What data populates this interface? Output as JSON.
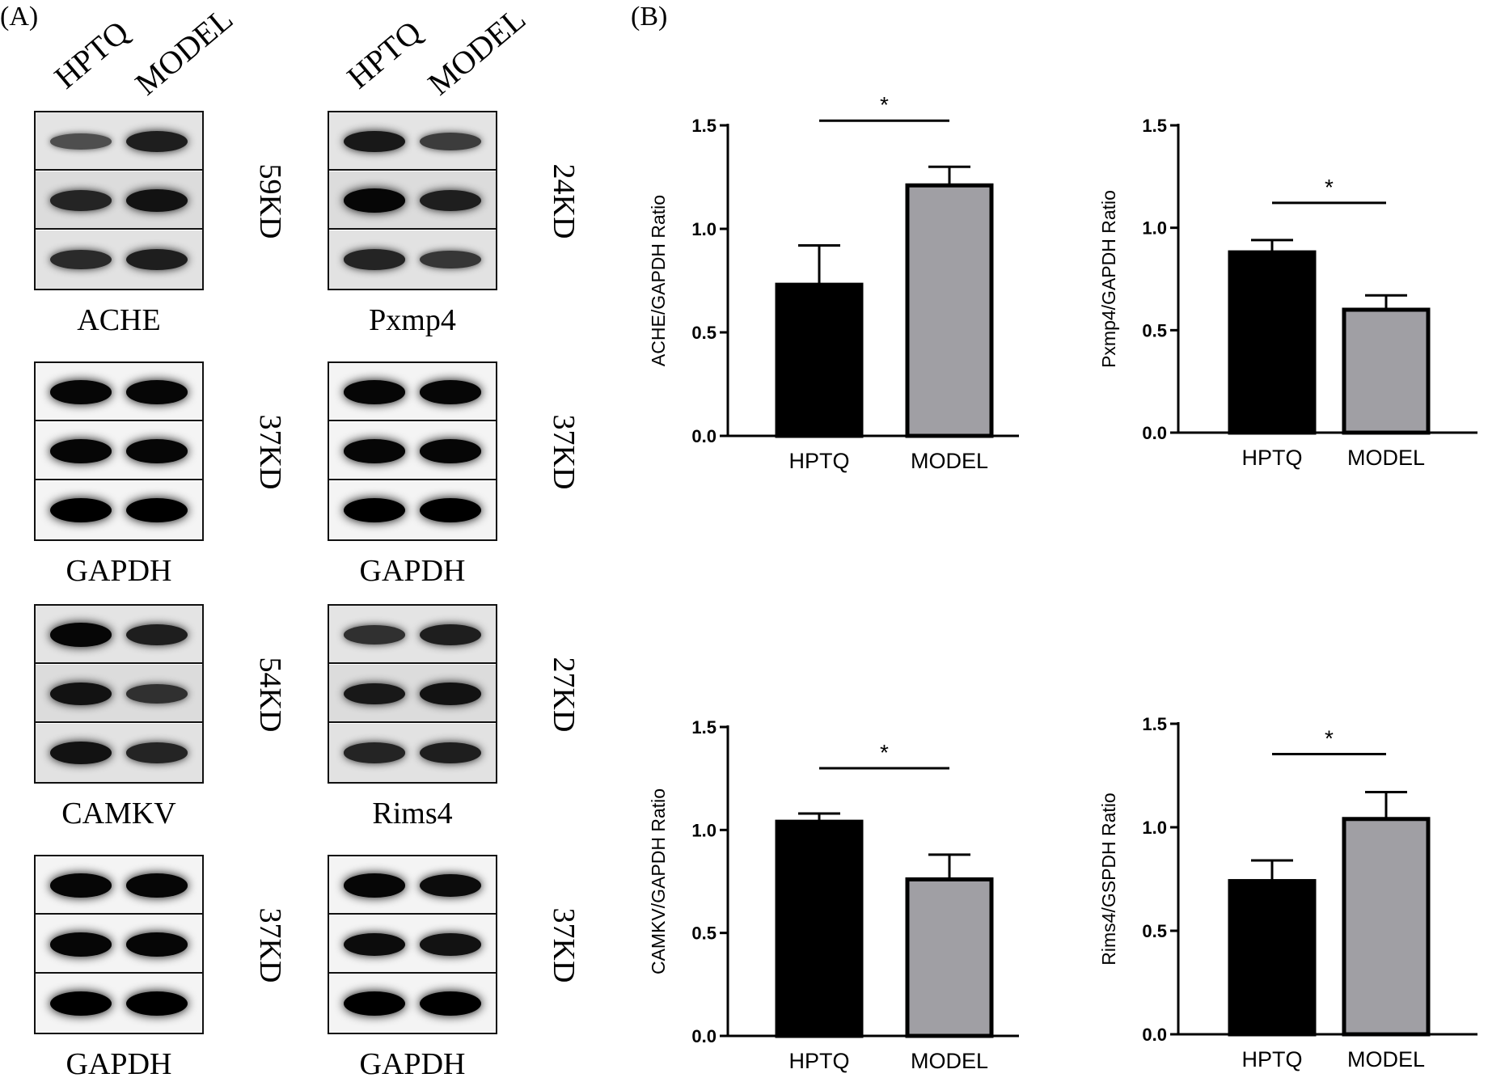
{
  "panels": {
    "a": "(A)",
    "b": "(B)"
  },
  "western_blot": {
    "lane_labels": [
      "HPTQ",
      "MODEL"
    ],
    "blots": [
      {
        "name": "ACHE",
        "kd": "59KD",
        "bands": [
          [
            0.35,
            0.75
          ],
          [
            0.7,
            0.85
          ],
          [
            0.65,
            0.75
          ]
        ]
      },
      {
        "name": "Pxmp4",
        "kd": "24KD",
        "bands": [
          [
            0.8,
            0.5
          ],
          [
            0.95,
            0.75
          ],
          [
            0.7,
            0.55
          ]
        ]
      },
      {
        "name": "GAPDH",
        "kd": "37KD",
        "bands": [
          [
            0.95,
            0.95
          ],
          [
            0.95,
            0.95
          ],
          [
            1,
            1
          ]
        ]
      },
      {
        "name": "GAPDH",
        "kd": "37KD",
        "bands": [
          [
            0.95,
            0.95
          ],
          [
            0.95,
            0.95
          ],
          [
            1,
            1
          ]
        ]
      },
      {
        "name": "CAMKV",
        "kd": "54KD",
        "bands": [
          [
            0.95,
            0.75
          ],
          [
            0.85,
            0.6
          ],
          [
            0.85,
            0.7
          ]
        ]
      },
      {
        "name": "Rims4",
        "kd": "27KD",
        "bands": [
          [
            0.6,
            0.75
          ],
          [
            0.8,
            0.85
          ],
          [
            0.7,
            0.75
          ]
        ]
      },
      {
        "name": "GAPDH",
        "kd": "37KD",
        "bands": [
          [
            0.95,
            0.95
          ],
          [
            0.95,
            0.95
          ],
          [
            1,
            1
          ]
        ]
      },
      {
        "name": "GAPDH",
        "kd": "37KD",
        "bands": [
          [
            0.95,
            0.9
          ],
          [
            0.9,
            0.85
          ],
          [
            1,
            1
          ]
        ]
      }
    ]
  },
  "colors": {
    "hptq": "#000000",
    "model": "#a09fa4",
    "axis": "#000000"
  },
  "chart_data": [
    {
      "type": "bar",
      "categories": [
        "HPTQ",
        "MODEL"
      ],
      "values": [
        0.73,
        1.21
      ],
      "errors": [
        0.19,
        0.09
      ],
      "ylabel": "ACHE/GAPDH Ratio",
      "ylim": [
        0,
        1.5
      ],
      "yticks": [
        "0.0",
        "0.5",
        "1.0",
        "1.5"
      ],
      "significance": "*"
    },
    {
      "type": "bar",
      "categories": [
        "HPTQ",
        "MODEL"
      ],
      "values": [
        0.88,
        0.6
      ],
      "errors": [
        0.06,
        0.07
      ],
      "ylabel": "Pxmp4/GAPDH Ratio",
      "ylim": [
        0,
        1.5
      ],
      "yticks": [
        "0.0",
        "0.5",
        "1.0",
        "1.5"
      ],
      "significance": "*"
    },
    {
      "type": "bar",
      "categories": [
        "HPTQ",
        "MODEL"
      ],
      "values": [
        1.04,
        0.76
      ],
      "errors": [
        0.04,
        0.12
      ],
      "ylabel": "CAMKV/GAPDH Ratio",
      "ylim": [
        0,
        1.5
      ],
      "yticks": [
        "0.0",
        "0.5",
        "1.0",
        "1.5"
      ],
      "significance": "*"
    },
    {
      "type": "bar",
      "categories": [
        "HPTQ",
        "MODEL"
      ],
      "values": [
        0.74,
        1.04
      ],
      "errors": [
        0.1,
        0.13
      ],
      "ylabel": "Rims4/GSPDH Ratio",
      "ylim": [
        0,
        1.5
      ],
      "yticks": [
        "0.0",
        "0.5",
        "1.0",
        "1.5"
      ],
      "significance": "*"
    }
  ]
}
